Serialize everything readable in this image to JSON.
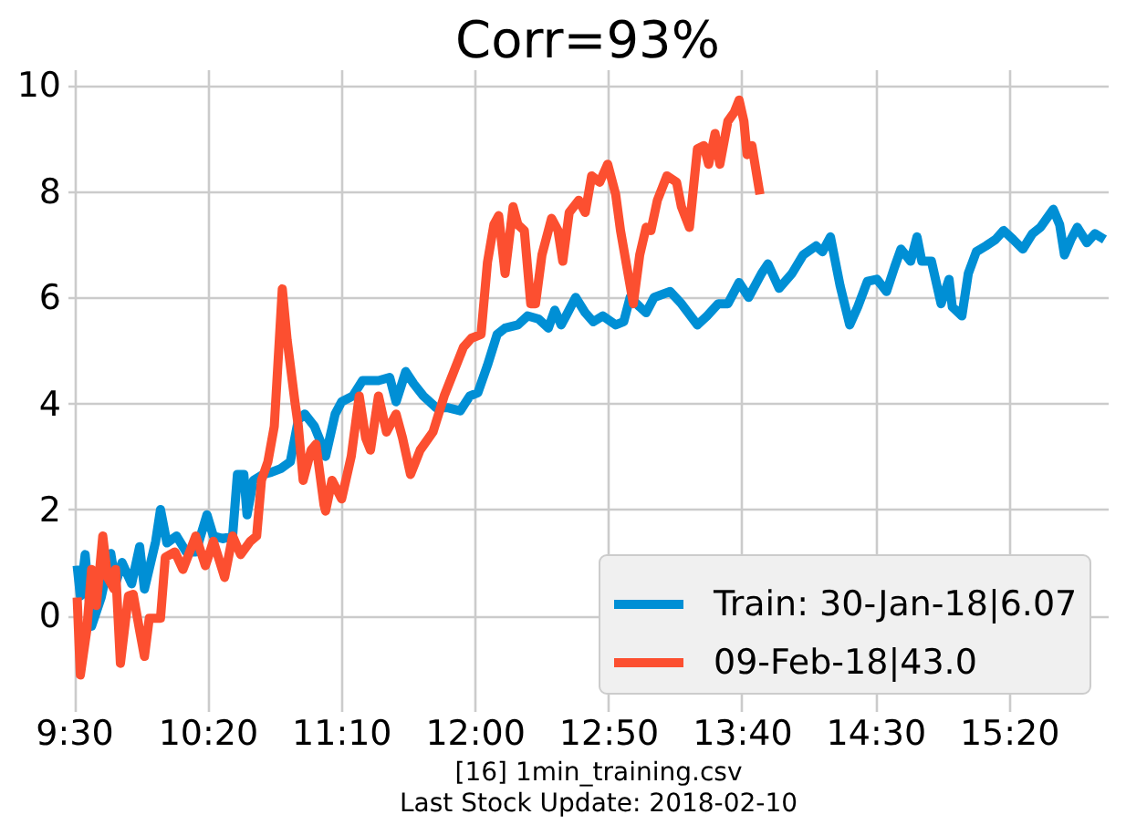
{
  "chart_data": {
    "type": "line",
    "title": "Corr=93%",
    "xlim": [
      9.46,
      15.95
    ],
    "xticks": [
      {
        "value": 9.5,
        "label": "9:30"
      },
      {
        "value": 10.3333,
        "label": "10:20"
      },
      {
        "value": 11.1667,
        "label": "11:10"
      },
      {
        "value": 12,
        "label": "12:00"
      },
      {
        "value": 12.8333,
        "label": "12:50"
      },
      {
        "value": 13.6667,
        "label": "13:40"
      },
      {
        "value": 14.5,
        "label": "14:30"
      },
      {
        "value": 15.3333,
        "label": "15:20"
      }
    ],
    "ylim": [
      -1.8,
      10.3
    ],
    "yticks": [
      0,
      2,
      4,
      6,
      8,
      10
    ],
    "grid": true,
    "legend": "bottom right",
    "series": [
      {
        "name": "Train: 30-Jan-18|6.07",
        "color": "#008fd5",
        "x": [
          9.52,
          9.54,
          9.57,
          9.61,
          9.67,
          9.73,
          9.76,
          9.8,
          9.86,
          9.91,
          9.94,
          10.01,
          10.04,
          10.08,
          10.14,
          10.2,
          10.26,
          10.33,
          10.37,
          10.43,
          10.49,
          10.52,
          10.56,
          10.58,
          10.62,
          10.68,
          10.73,
          10.79,
          10.85,
          10.9,
          10.94,
          11.0,
          11.06,
          11.07,
          11.13,
          11.17,
          11.24,
          11.3,
          11.4,
          11.47,
          11.51,
          11.57,
          11.62,
          11.68,
          11.76,
          11.83,
          11.91,
          11.97,
          12.02,
          12.08,
          12.14,
          12.19,
          12.27,
          12.33,
          12.4,
          12.46,
          12.5,
          12.54,
          12.57,
          12.63,
          12.69,
          12.74,
          12.8,
          12.88,
          12.93,
          12.97,
          13.03,
          13.07,
          13.12,
          13.22,
          13.29,
          13.39,
          13.45,
          13.52,
          13.58,
          13.65,
          13.71,
          13.79,
          13.83,
          13.9,
          13.98,
          14.05,
          14.13,
          14.17,
          14.22,
          14.28,
          14.34,
          14.39,
          14.45,
          14.51,
          14.57,
          14.62,
          14.66,
          14.72,
          14.76,
          14.79,
          14.85,
          14.91,
          14.96,
          14.98,
          15.04,
          15.08,
          15.13,
          15.19,
          15.25,
          15.3,
          15.36,
          15.42,
          15.48,
          15.53,
          15.61,
          15.65,
          15.68,
          15.72,
          15.76,
          15.82,
          15.87,
          15.93
        ],
        "values": [
          0.94,
          0.37,
          1.15,
          -0.2,
          0.34,
          1.17,
          0.6,
          1.0,
          0.6,
          1.3,
          0.5,
          1.4,
          2.0,
          1.37,
          1.5,
          1.2,
          1.2,
          1.9,
          1.5,
          1.45,
          1.5,
          2.66,
          2.66,
          1.9,
          2.55,
          2.66,
          2.7,
          2.77,
          2.9,
          3.69,
          3.8,
          3.57,
          3.12,
          3.0,
          3.8,
          4.03,
          4.14,
          4.43,
          4.43,
          4.49,
          4.03,
          4.6,
          4.37,
          4.14,
          3.92,
          3.92,
          3.86,
          4.14,
          4.2,
          4.72,
          5.3,
          5.42,
          5.48,
          5.65,
          5.59,
          5.42,
          5.76,
          5.48,
          5.65,
          6.0,
          5.71,
          5.54,
          5.65,
          5.48,
          5.54,
          6.0,
          5.82,
          5.71,
          6.0,
          6.11,
          5.88,
          5.48,
          5.65,
          5.88,
          5.88,
          6.28,
          6.0,
          6.45,
          6.63,
          6.17,
          6.45,
          6.8,
          6.97,
          6.86,
          7.14,
          6.22,
          5.48,
          5.82,
          6.3,
          6.34,
          6.11,
          6.57,
          6.91,
          6.68,
          7.14,
          6.68,
          6.68,
          5.88,
          6.34,
          5.82,
          5.65,
          6.45,
          6.86,
          6.97,
          7.09,
          7.26,
          7.09,
          6.91,
          7.2,
          7.32,
          7.66,
          7.37,
          6.8,
          7.09,
          7.32,
          7.03,
          7.2,
          7.09
        ]
      },
      {
        "name": "09-Feb-18|43.0",
        "color": "#fc4f30",
        "x": [
          9.52,
          9.54,
          9.58,
          9.61,
          9.64,
          9.68,
          9.71,
          9.75,
          9.76,
          9.79,
          9.84,
          9.87,
          9.91,
          9.94,
          9.97,
          10.04,
          10.07,
          10.13,
          10.18,
          10.26,
          10.32,
          10.37,
          10.44,
          10.49,
          10.54,
          10.6,
          10.64,
          10.67,
          10.71,
          10.75,
          10.8,
          10.83,
          10.88,
          10.9,
          10.93,
          10.98,
          11.01,
          11.06,
          11.07,
          11.11,
          11.17,
          11.23,
          11.28,
          11.32,
          11.35,
          11.4,
          11.45,
          11.51,
          11.55,
          11.6,
          11.66,
          11.74,
          11.81,
          11.87,
          11.93,
          11.98,
          12.04,
          12.08,
          12.12,
          12.15,
          12.19,
          12.24,
          12.27,
          12.31,
          12.35,
          12.38,
          12.42,
          12.48,
          12.52,
          12.55,
          12.59,
          12.65,
          12.69,
          12.73,
          12.78,
          12.83,
          12.88,
          12.91,
          12.95,
          12.99,
          13.03,
          13.07,
          13.1,
          13.14,
          13.2,
          13.26,
          13.29,
          13.34,
          13.39,
          13.43,
          13.46,
          13.5,
          13.53,
          13.58,
          13.62,
          13.65,
          13.68,
          13.7,
          13.73,
          13.78
        ],
        "values": [
          0.34,
          -1.12,
          -0.28,
          0.87,
          0.19,
          1.5,
          0.72,
          0.5,
          0.87,
          -0.9,
          0.37,
          0.4,
          -0.28,
          -0.77,
          -0.05,
          -0.05,
          1.1,
          1.2,
          0.87,
          1.5,
          0.94,
          1.4,
          0.72,
          1.5,
          1.15,
          1.4,
          1.5,
          2.55,
          2.9,
          3.57,
          6.16,
          5.2,
          4.0,
          3.57,
          2.55,
          3.12,
          3.23,
          2.09,
          1.97,
          2.55,
          2.2,
          3.0,
          4.14,
          3.35,
          3.12,
          4.14,
          3.46,
          3.8,
          3.35,
          2.66,
          3.12,
          3.46,
          4.14,
          4.6,
          5.06,
          5.23,
          5.3,
          6.66,
          7.37,
          7.54,
          6.45,
          7.71,
          7.37,
          7.26,
          5.88,
          5.88,
          6.8,
          7.49,
          7.26,
          6.68,
          7.6,
          7.83,
          7.6,
          8.29,
          8.17,
          8.51,
          7.94,
          7.26,
          6.57,
          5.88,
          6.8,
          7.32,
          7.26,
          7.83,
          8.29,
          8.17,
          7.71,
          7.32,
          8.8,
          8.86,
          8.51,
          9.09,
          8.51,
          9.32,
          9.49,
          9.72,
          9.32,
          8.69,
          8.86,
          7.94
        ]
      }
    ],
    "annotations": [
      "[16] 1min_training.csv",
      "Last Stock Update: 2018-02-10"
    ]
  }
}
